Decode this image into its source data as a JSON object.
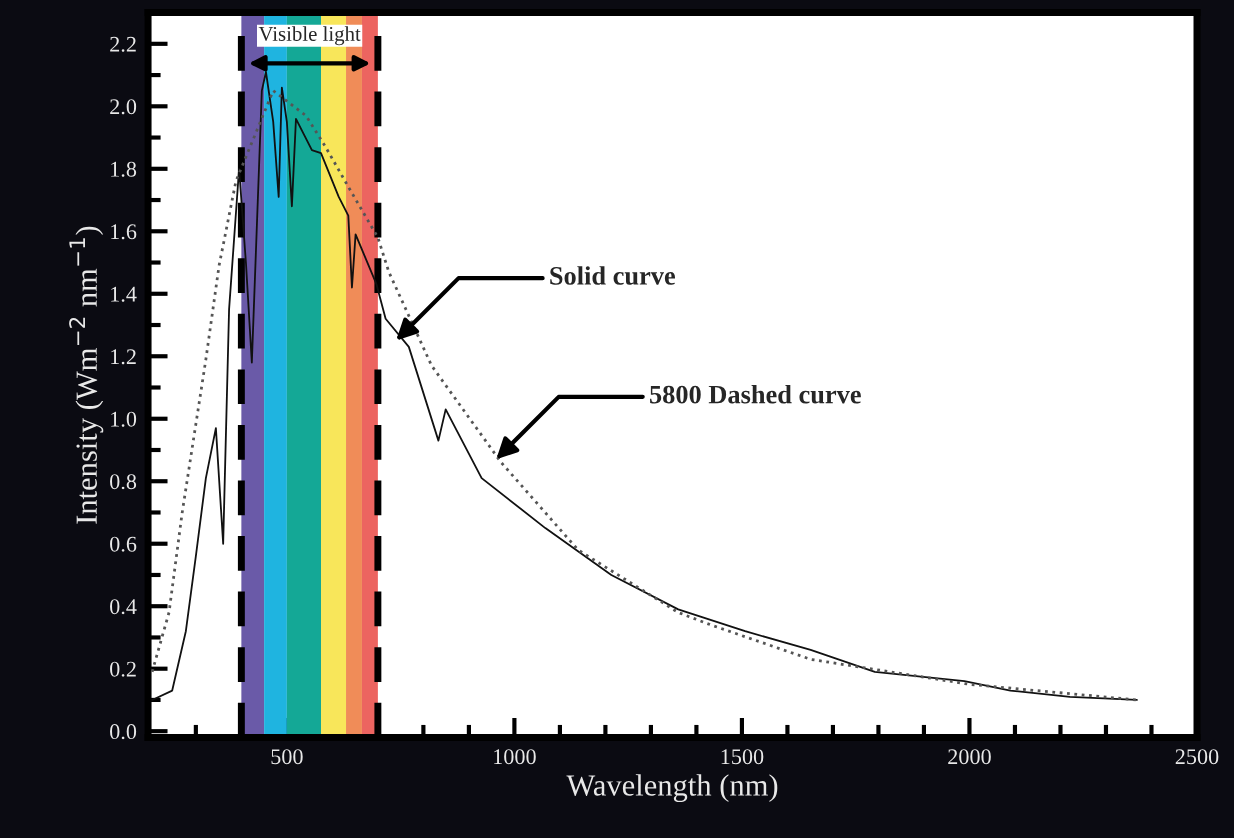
{
  "chart_data": {
    "type": "line",
    "xlabel": "Wavelength (nm)",
    "ylabel": "Intensity (Wm$^{−2}$ nm$^{−1}$)",
    "series": [
      {
        "color": "#111111",
        "line_style": "solid",
        "x": [
          204,
          248,
          278,
          300,
          322,
          344,
          360,
          373,
          395,
          410,
          423,
          445,
          454,
          470,
          482,
          489,
          500,
          511,
          520,
          555,
          575,
          614,
          635,
          643,
          651,
          697,
          717,
          768,
          833,
          849,
          928,
          1068,
          1213,
          1360,
          1507,
          1651,
          1792,
          1989,
          2090,
          2221,
          2368
        ],
        "values": [
          0.1,
          0.13,
          0.32,
          0.56,
          0.81,
          0.97,
          0.6,
          1.35,
          1.8,
          1.5,
          1.18,
          2.05,
          2.11,
          1.95,
          1.71,
          2.06,
          1.95,
          1.68,
          1.96,
          1.86,
          1.85,
          1.71,
          1.65,
          1.42,
          1.59,
          1.43,
          1.32,
          1.23,
          0.93,
          1.03,
          0.81,
          0.65,
          0.5,
          0.39,
          0.32,
          0.26,
          0.19,
          0.16,
          0.13,
          0.11,
          0.1
        ]
      },
      {
        "color": "#555555",
        "line_style": "dotted",
        "x": [
          204,
          241,
          270,
          322,
          351,
          388,
          470,
          542,
          585,
          636,
          700,
          724,
          818,
          971,
          1140,
          1360,
          1432,
          1651,
          2000,
          2368
        ],
        "values": [
          0.19,
          0.38,
          0.7,
          1.19,
          1.49,
          1.76,
          2.05,
          1.97,
          1.87,
          1.74,
          1.58,
          1.47,
          1.17,
          0.86,
          0.58,
          0.38,
          0.34,
          0.23,
          0.15,
          0.1
        ]
      }
    ],
    "xlim": [
      195,
      2500
    ],
    "ylim": [
      -0.02,
      2.3
    ],
    "xticks": [
      {
        "value": 300,
        "label": null
      },
      {
        "value": 400,
        "label": null
      },
      500,
      {
        "value": 600,
        "label": null
      },
      {
        "value": 700,
        "label": null
      },
      {
        "value": 800,
        "label": null
      },
      {
        "value": 900,
        "label": null
      },
      1000,
      {
        "value": 1100,
        "label": null
      },
      {
        "value": 1200,
        "label": null
      },
      {
        "value": 1300,
        "label": null
      },
      {
        "value": 1400,
        "label": null
      },
      1500,
      {
        "value": 1600,
        "label": null
      },
      {
        "value": 1700,
        "label": null
      },
      {
        "value": 1800,
        "label": null
      },
      {
        "value": 1900,
        "label": null
      },
      2000,
      {
        "value": 2100,
        "label": null
      },
      {
        "value": 2200,
        "label": null
      },
      {
        "value": 2300,
        "label": null
      },
      {
        "value": 2400,
        "label": null
      },
      2500
    ],
    "yticks": [
      {
        "value": 0,
        "label": "0.0"
      },
      {
        "value": 0.1,
        "label": null
      },
      {
        "value": 0.2,
        "label": "0.2"
      },
      {
        "value": 0.3,
        "label": null
      },
      {
        "value": 0.4,
        "label": "0.4"
      },
      {
        "value": 0.5,
        "label": null
      },
      {
        "value": 0.6,
        "label": "0.6"
      },
      {
        "value": 0.7,
        "label": null
      },
      {
        "value": 0.8,
        "label": "0.8"
      },
      {
        "value": 0.9,
        "label": null
      },
      {
        "value": 1.0,
        "label": "1.0"
      },
      {
        "value": 1.1,
        "label": null
      },
      {
        "value": 1.2,
        "label": "1.2"
      },
      {
        "value": 1.3,
        "label": null
      },
      {
        "value": 1.4,
        "label": "1.4"
      },
      {
        "value": 1.5,
        "label": null
      },
      {
        "value": 1.6,
        "label": "1.6"
      },
      {
        "value": 1.7,
        "label": null
      },
      {
        "value": 1.8,
        "label": "1.8"
      },
      {
        "value": 1.9,
        "label": null
      },
      {
        "value": 2.0,
        "label": "2.0"
      },
      {
        "value": 2.1,
        "label": null
      },
      {
        "value": 2.2,
        "label": "2.2"
      }
    ],
    "bands": [
      {
        "axis": "x",
        "from": 400,
        "to": 450,
        "color": "#6a5aa8"
      },
      {
        "axis": "x",
        "from": 450,
        "to": 500,
        "color": "#1fb4e0"
      },
      {
        "axis": "x",
        "from": 500,
        "to": 575,
        "color": "#14a896"
      },
      {
        "axis": "x",
        "from": 575,
        "to": 630,
        "color": "#f8e65a"
      },
      {
        "axis": "x",
        "from": 630,
        "to": 665,
        "color": "#f08c58"
      },
      {
        "axis": "x",
        "from": 665,
        "to": 700,
        "color": "#ec6460"
      }
    ],
    "ref_lines": [
      {
        "axis": "x",
        "value": 400,
        "color": "#000000",
        "line_style": "dashed"
      },
      {
        "axis": "x",
        "value": 700,
        "color": "#000000",
        "line_style": "dashed"
      }
    ],
    "annotations": [
      "Visible light",
      {
        "text": "Solid curve",
        "x": 740,
        "y": 1.25
      },
      {
        "text": "5800 Dashed curve",
        "x": 960,
        "y": 0.87
      }
    ],
    "grid": false,
    "legend": false,
    "marker": "none"
  }
}
